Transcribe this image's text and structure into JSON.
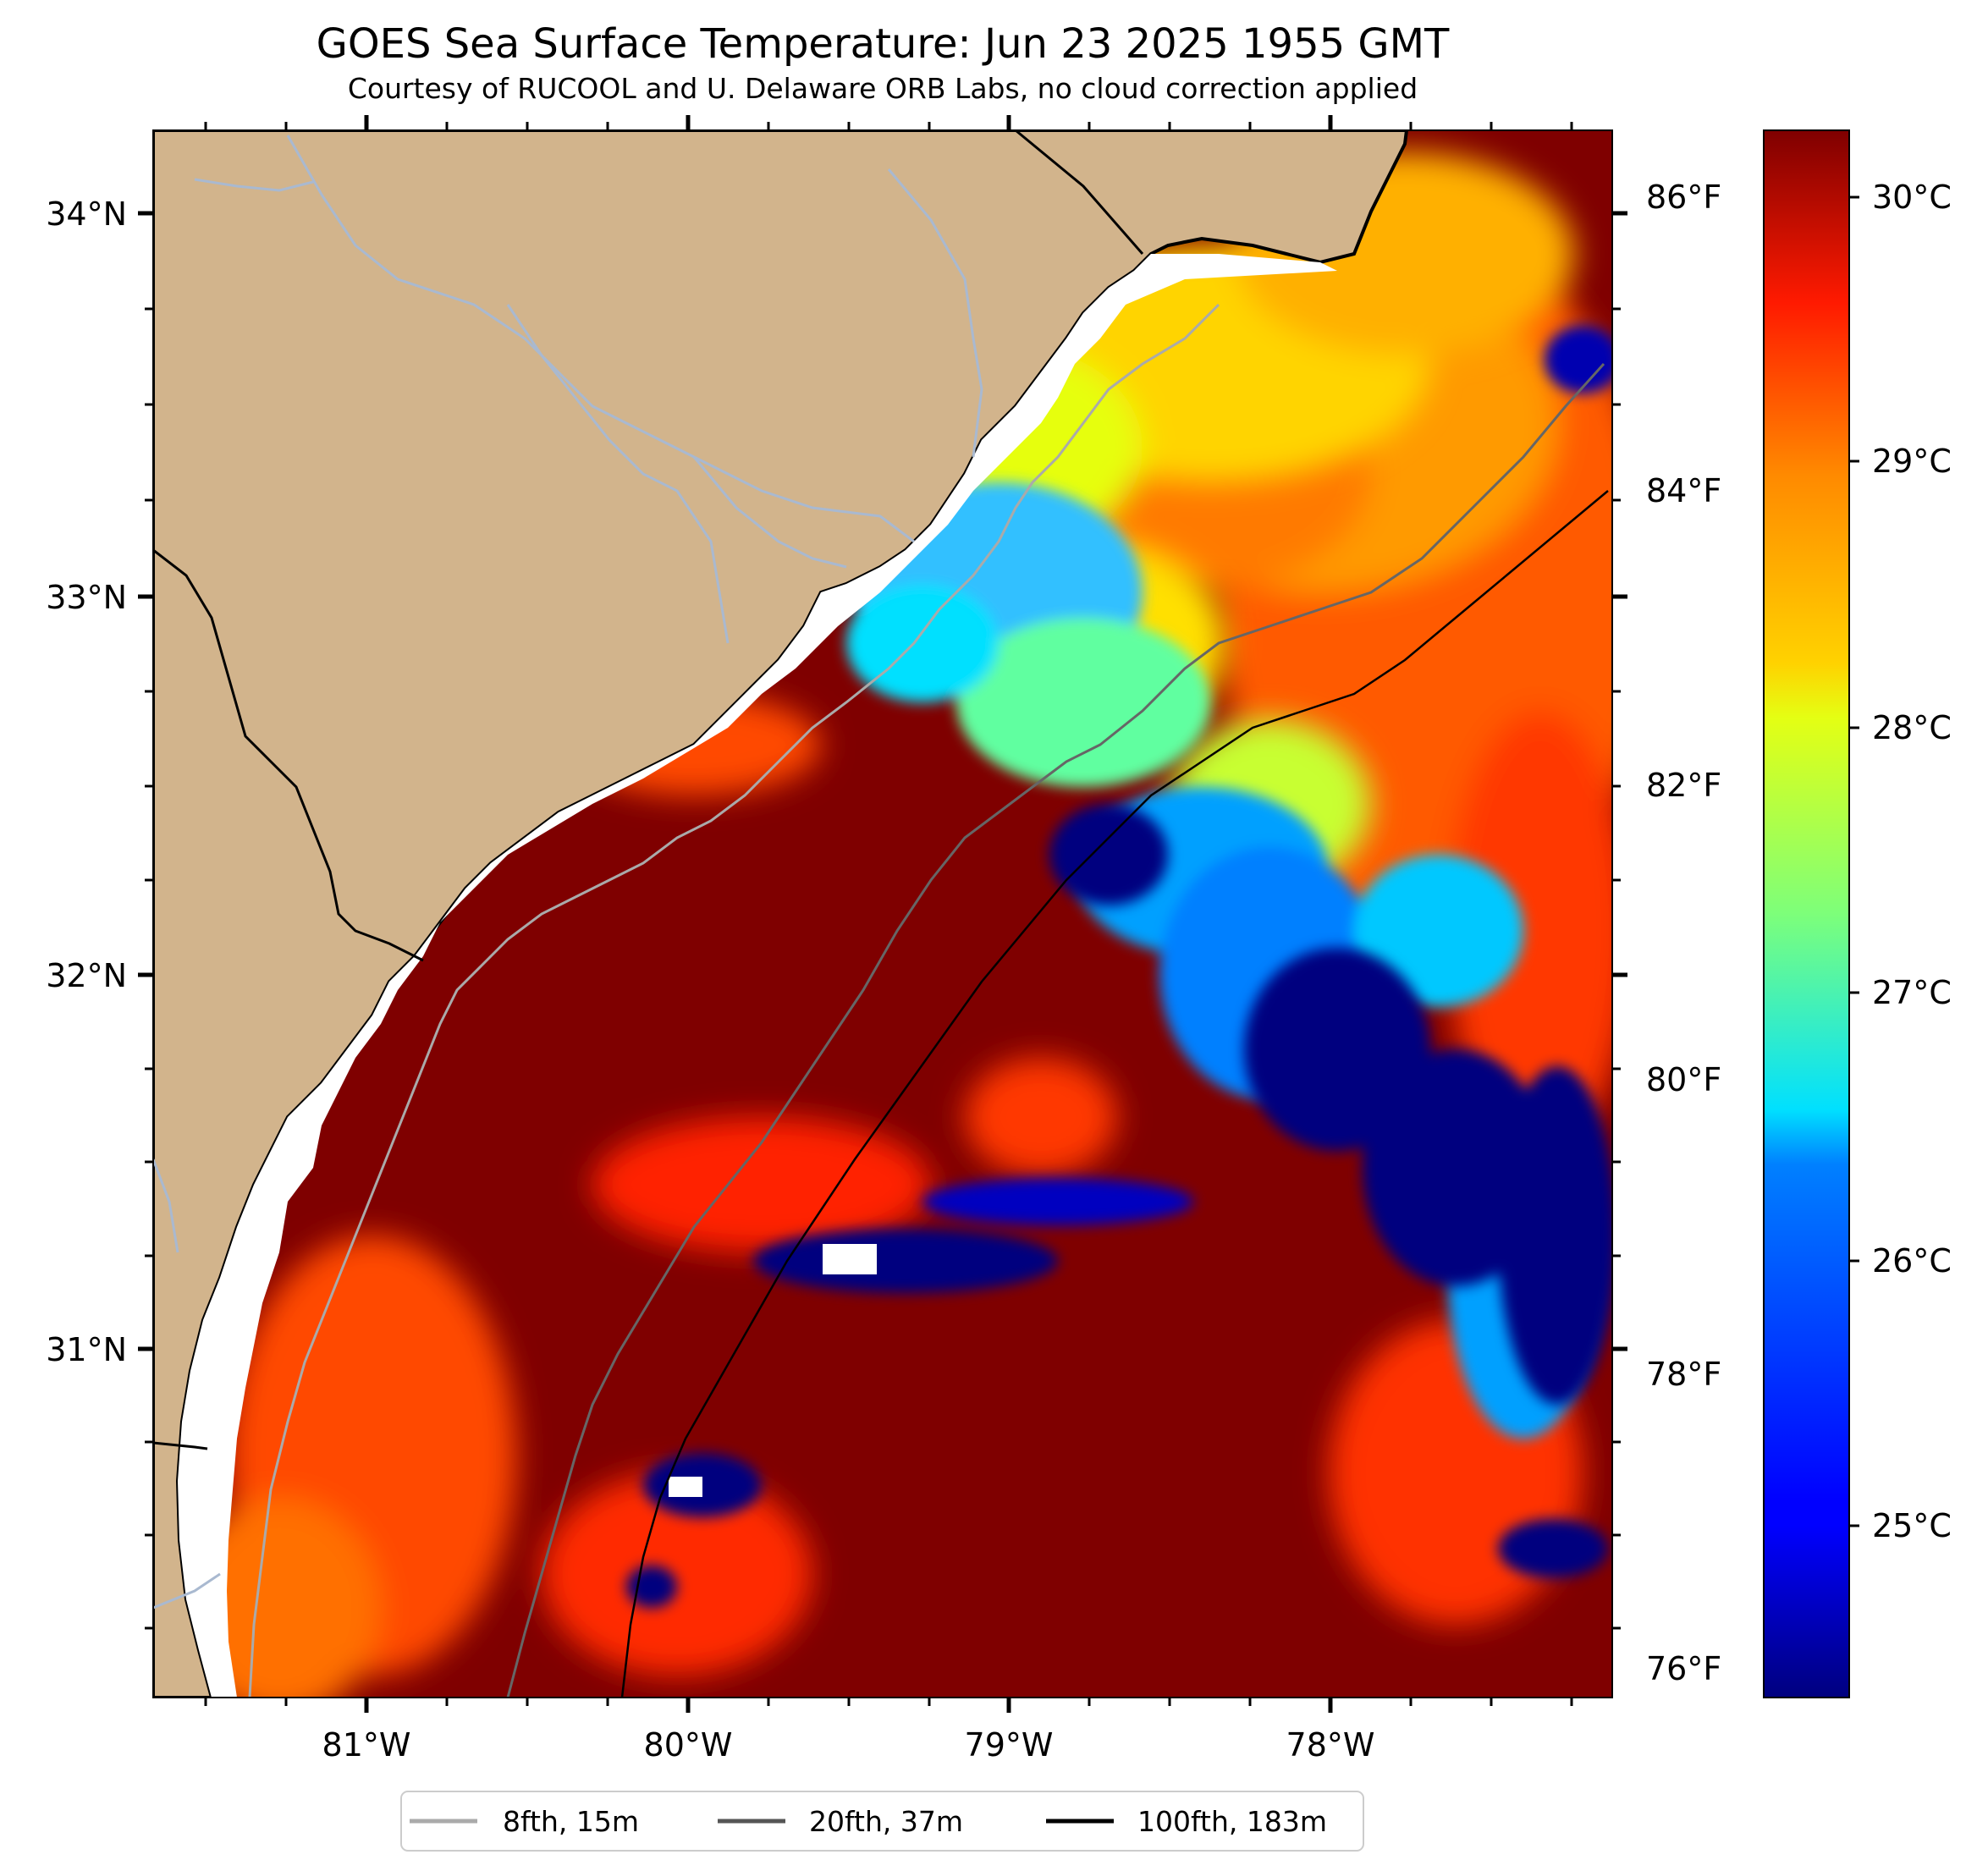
{
  "title": "GOES Sea Surface Temperature: Jun 23 2025 1955 GMT",
  "subtitle": "Courtesy of RUCOOL and U. Delaware ORB Labs, no cloud correction applied",
  "map": {
    "projection": "PlateCarree",
    "lon_range": [
      -81.67,
      -77.13
    ],
    "lat_range": [
      30.08,
      34.22
    ],
    "land_color": "#d2b48c",
    "ocean_mask_color": "#ffffff",
    "coast_color": "#000000",
    "river_color": "#a9b9d0",
    "lon_ticks": [
      "81°W",
      "80°W",
      "79°W",
      "78°W"
    ],
    "lat_ticks": [
      "34°N",
      "33°N",
      "32°N",
      "31°N"
    ],
    "fahrenheit_ticks": [
      "86°F",
      "84°F",
      "82°F",
      "80°F",
      "78°F",
      "76°F"
    ]
  },
  "colorbar": {
    "colormap": "jet",
    "range_c": [
      24.3,
      30.3
    ],
    "ticks": [
      "30°C",
      "29°C",
      "28°C",
      "27°C",
      "26°C",
      "25°C"
    ],
    "tick_values": [
      30,
      29,
      28,
      27,
      26,
      25
    ]
  },
  "legend": {
    "placement": "bottom-center",
    "items": [
      {
        "label": "8fth, 15m",
        "color": "#aaaaaa"
      },
      {
        "label": "20fth, 37m",
        "color": "#555555"
      },
      {
        "label": "100fth, 183m",
        "color": "#000000"
      }
    ]
  }
}
